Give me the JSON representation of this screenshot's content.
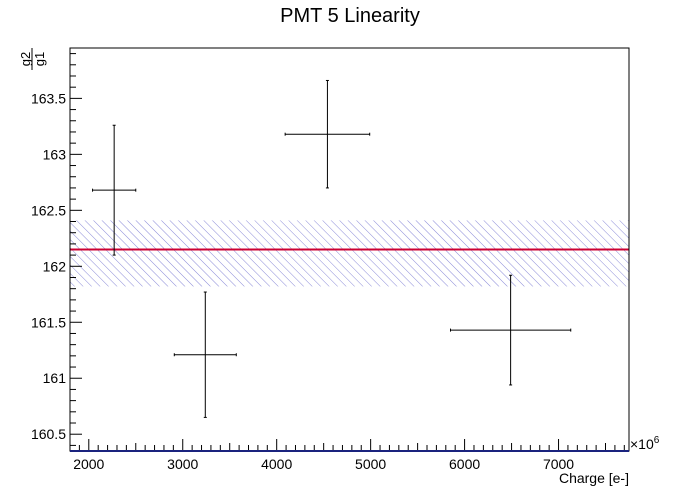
{
  "chart_data": {
    "type": "scatter",
    "title": "PMT 5 Linearity",
    "xlabel": "Charge [e-]",
    "ylabel_num": "g2",
    "ylabel_den": "g1",
    "x_exponent_label": "×10",
    "x_exponent": "6",
    "xlim": [
      1800,
      7750
    ],
    "ylim": [
      160.35,
      163.95
    ],
    "x_ticks": [
      2000,
      3000,
      4000,
      5000,
      6000,
      7000
    ],
    "x_tick_labels": [
      "2000",
      "3000",
      "4000",
      "5000",
      "6000",
      "7000"
    ],
    "y_ticks": [
      160.5,
      161,
      161.5,
      162,
      162.5,
      163,
      163.5
    ],
    "y_tick_labels": [
      "160.5",
      "161",
      "161.5",
      "162",
      "162.5",
      "163",
      "163.5"
    ],
    "grid": false,
    "points": [
      {
        "x": 2270,
        "y": 162.68,
        "xerr": 230,
        "yerr": 0.58
      },
      {
        "x": 3240,
        "y": 161.21,
        "xerr": 330,
        "yerr": 0.56
      },
      {
        "x": 4540,
        "y": 163.18,
        "xerr": 450,
        "yerr": 0.48
      },
      {
        "x": 6490,
        "y": 161.43,
        "xerr": 640,
        "yerr": 0.49
      }
    ],
    "fit": {
      "value": 162.15,
      "band_low": 161.82,
      "band_high": 162.41
    },
    "colors": {
      "fit_line": "#cc0033",
      "band": "#7b7bd6",
      "axis": "#000000",
      "points": "#000000"
    }
  }
}
